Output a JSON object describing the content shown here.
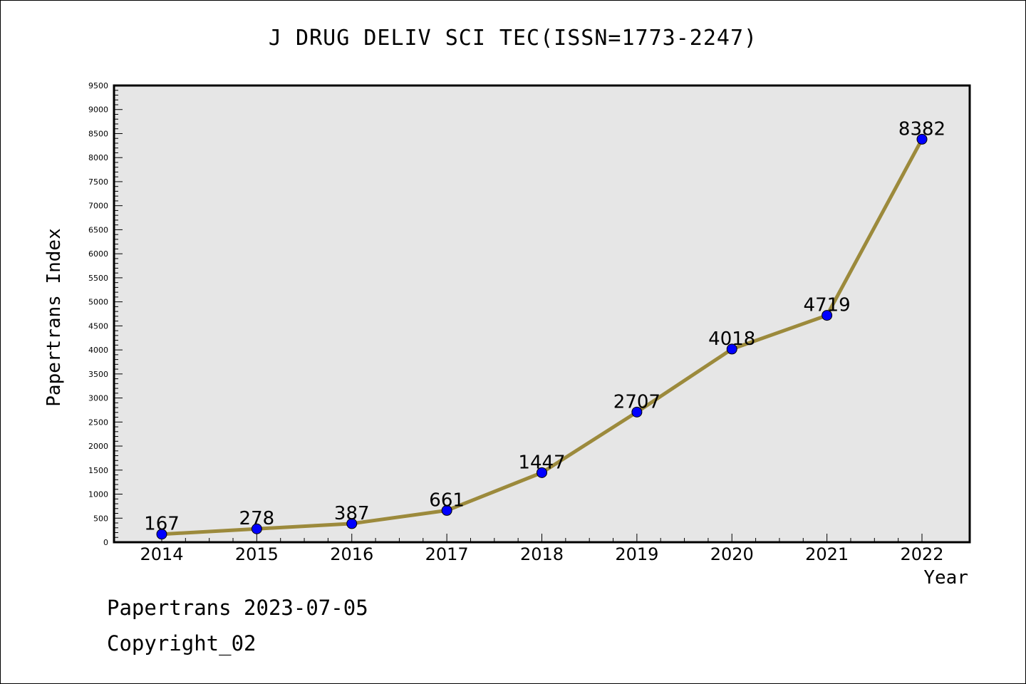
{
  "chart_data": {
    "type": "line",
    "title": "J DRUG DELIV SCI TEC(ISSN=1773-2247)",
    "xlabel": "Year",
    "ylabel": "Papertrans Index",
    "categories": [
      "2014",
      "2015",
      "2016",
      "2017",
      "2018",
      "2019",
      "2020",
      "2021",
      "2022"
    ],
    "series": [
      {
        "values": [
          167,
          278,
          387,
          661,
          1447,
          2707,
          4018,
          4719,
          8382
        ]
      }
    ],
    "data_labels": [
      "167",
      "278",
      "387",
      "661",
      "1447",
      "2707",
      "4018",
      "4719",
      "8382"
    ],
    "ylim": [
      0,
      9500
    ],
    "ytick_step": 500,
    "yticks": [
      "0",
      "500",
      "1000",
      "1500",
      "2000",
      "2500",
      "3000",
      "3500",
      "4000",
      "4500",
      "5000",
      "5500",
      "6000",
      "6500",
      "7000",
      "7500",
      "8000",
      "8500",
      "9000",
      "9500"
    ],
    "grid": false,
    "legend": "none",
    "colors": {
      "line": "#9c8a3c",
      "marker": "#0000ff",
      "plot_background": "#e6e6e6"
    }
  },
  "footer": {
    "date": "Papertrans 2023-07-05",
    "copyright": "Copyright_02"
  }
}
